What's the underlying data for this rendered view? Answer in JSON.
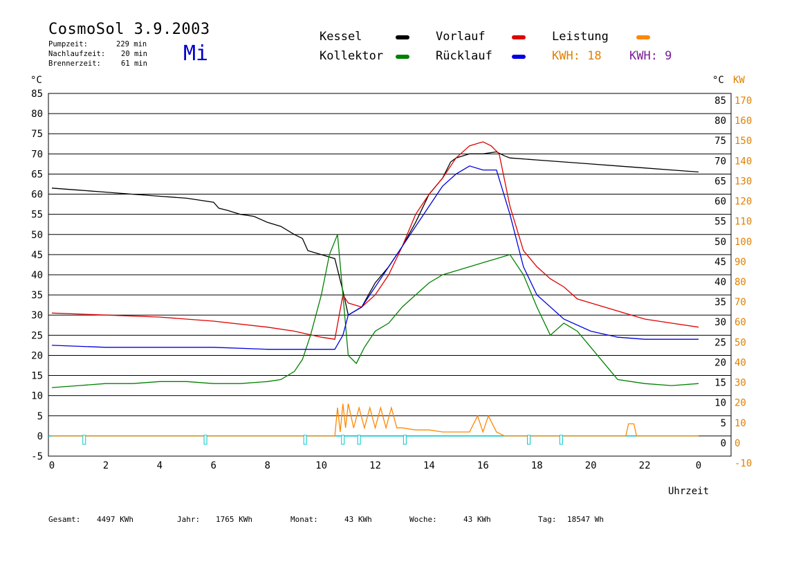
{
  "header": {
    "title": "CosmoSol 3.9.2003",
    "day": "Mi",
    "stats": [
      {
        "label": "Pumpzeit:",
        "value": "229 min"
      },
      {
        "label": "Nachlaufzeit:",
        "value": "20 min"
      },
      {
        "label": "Brennerzeit:",
        "value": "61 min"
      }
    ]
  },
  "legend": {
    "items": [
      {
        "label": "Kessel",
        "color": "#000000"
      },
      {
        "label": "Vorlauf",
        "color": "#dd0000"
      },
      {
        "label": "Leistung",
        "color": "#ff8800"
      },
      {
        "label": "Kollektor",
        "color": "#008000"
      },
      {
        "label": "Rücklauf",
        "color": "#0000dd"
      }
    ],
    "kwh_orange": "KWH: 18",
    "kwh_purple": "KWH: 9"
  },
  "colors": {
    "kwh_orange": "#e08000",
    "kwh_purple": "#7a1c9a",
    "cyan": "#00c8c8",
    "axis_right_kw": "#e08000"
  },
  "footer": [
    {
      "label": "Gesamt:",
      "value": "4497 KWh"
    },
    {
      "label": "Jahr:",
      "value": "1765 KWh"
    },
    {
      "label": "Monat:",
      "value": "43 KWh"
    },
    {
      "label": "Woche:",
      "value": "43 KWh"
    },
    {
      "label": "Tag:",
      "value": "18547 Wh"
    }
  ],
  "chart_data": {
    "type": "line",
    "xlabel": "Uhrzeit",
    "ylabel_left": "°C",
    "ylabel_right": "°C",
    "ylabel_right2": "KW",
    "xlim": [
      0,
      24
    ],
    "ylim": [
      -5,
      85
    ],
    "xticks": [
      "0",
      "2",
      "4",
      "6",
      "8",
      "10",
      "12",
      "14",
      "16",
      "18",
      "20",
      "22",
      "0"
    ],
    "yticks_left": [
      "85",
      "80",
      "75",
      "70",
      "65",
      "60",
      "55",
      "50",
      "45",
      "40",
      "35",
      "30",
      "25",
      "20",
      "15",
      "10",
      "5",
      "0",
      "-5"
    ],
    "yticks_right": [
      "85",
      "80",
      "75",
      "70",
      "65",
      "60",
      "55",
      "50",
      "45",
      "40",
      "35",
      "30",
      "25",
      "20",
      "15",
      "10",
      "5",
      "0"
    ],
    "yticks_kw": [
      "170",
      "160",
      "150",
      "140",
      "130",
      "120",
      "110",
      "100",
      "90",
      "80",
      "70",
      "60",
      "50",
      "40",
      "30",
      "20",
      "10",
      "0",
      "-10"
    ],
    "grid": true,
    "series": [
      {
        "name": "Kessel",
        "color": "#000000",
        "x": [
          0,
          1,
          2,
          3,
          4,
          5,
          6,
          6.2,
          6.5,
          7,
          7.5,
          8,
          8.5,
          9,
          9.3,
          9.5,
          10,
          10.5,
          10.8,
          11,
          11.5,
          12,
          12.5,
          13,
          13.5,
          14,
          14.5,
          14.8,
          15,
          15.5,
          16,
          16.5,
          16.8,
          17,
          18,
          19,
          20,
          21,
          22,
          23,
          24
        ],
        "y": [
          61.5,
          61,
          60.5,
          60,
          59.5,
          59,
          58,
          56.5,
          56,
          55,
          54.5,
          53,
          52,
          50,
          49,
          46,
          45,
          44,
          36,
          30,
          32,
          38,
          42,
          47,
          53,
          60,
          64,
          68,
          69,
          70,
          70,
          70.5,
          69.5,
          69,
          68.5,
          68,
          67.5,
          67,
          66.5,
          66,
          65.5
        ]
      },
      {
        "name": "Vorlauf",
        "color": "#dd0000",
        "x": [
          0,
          2,
          4,
          6,
          8,
          9,
          10,
          10.5,
          10.8,
          11,
          11.5,
          12,
          12.5,
          13,
          13.5,
          14,
          14.5,
          15,
          15.5,
          16,
          16.3,
          16.6,
          17,
          17.5,
          18,
          18.5,
          19,
          19.5,
          20,
          21,
          22,
          23,
          24
        ],
        "y": [
          30.5,
          30,
          29.5,
          28.5,
          27,
          26,
          24.5,
          24,
          35,
          33,
          32,
          35,
          40,
          47,
          55,
          60,
          64,
          69,
          72,
          73,
          72,
          70,
          57,
          46,
          42,
          39,
          37,
          34,
          33,
          31,
          29,
          28,
          27
        ]
      },
      {
        "name": "Kollektor",
        "color": "#008000",
        "x": [
          0,
          1,
          2,
          3,
          4,
          5,
          6,
          7,
          8,
          8.5,
          9,
          9.3,
          9.6,
          10,
          10.3,
          10.6,
          10.8,
          11,
          11.3,
          11.6,
          12,
          12.5,
          13,
          13.5,
          14,
          14.5,
          15,
          15.5,
          16,
          16.5,
          17,
          17.5,
          18,
          18.5,
          19,
          19.5,
          20,
          20.5,
          21,
          22,
          23,
          24
        ],
        "y": [
          12,
          12.5,
          13,
          13,
          13.5,
          13.5,
          13,
          13,
          13.5,
          14,
          16,
          19,
          25,
          35,
          45,
          50,
          35,
          20,
          18,
          22,
          26,
          28,
          32,
          35,
          38,
          40,
          41,
          42,
          43,
          44,
          45,
          40,
          32,
          25,
          28,
          26,
          22,
          18,
          14,
          13,
          12.5,
          13
        ]
      },
      {
        "name": "Rücklauf",
        "color": "#0000dd",
        "x": [
          0,
          2,
          4,
          6,
          8,
          9,
          10,
          10.5,
          10.8,
          11,
          11.5,
          12,
          12.5,
          13,
          13.5,
          14,
          14.5,
          15,
          15.5,
          16,
          16.5,
          17,
          17.5,
          18,
          19,
          20,
          21,
          22,
          23,
          24
        ],
        "y": [
          22.5,
          22,
          22,
          22,
          21.5,
          21.5,
          21.5,
          21.5,
          25,
          30,
          32,
          37,
          42,
          47,
          52,
          57,
          62,
          65,
          67,
          66,
          66,
          55,
          42,
          35,
          29,
          26,
          24.5,
          24,
          24,
          24
        ]
      },
      {
        "name": "Leistung",
        "color": "#ff8800",
        "x": [
          0,
          10.5,
          10.6,
          10.7,
          10.8,
          10.9,
          11,
          11.2,
          11.4,
          11.6,
          11.8,
          12,
          12.2,
          12.4,
          12.6,
          12.8,
          13,
          13.5,
          14,
          14.5,
          15,
          15.5,
          15.8,
          16,
          16.2,
          16.5,
          16.8,
          17,
          21.3,
          21.4,
          21.6,
          21.7,
          24
        ],
        "y": [
          0,
          0,
          7,
          1,
          8,
          2,
          8,
          2,
          7,
          2,
          7,
          2,
          7,
          2,
          7,
          2,
          2,
          1.5,
          1.5,
          1,
          1,
          1,
          5,
          1,
          5,
          1,
          0,
          0,
          0,
          3,
          3,
          0,
          0
        ]
      },
      {
        "name": "Pumpe",
        "color": "#00c8c8",
        "x": [
          1.2,
          5.7,
          9.4,
          10.8,
          11.4,
          13.1,
          17.7,
          18.9
        ],
        "y": [
          0,
          0,
          0,
          0,
          0,
          0,
          0,
          0
        ]
      }
    ]
  }
}
